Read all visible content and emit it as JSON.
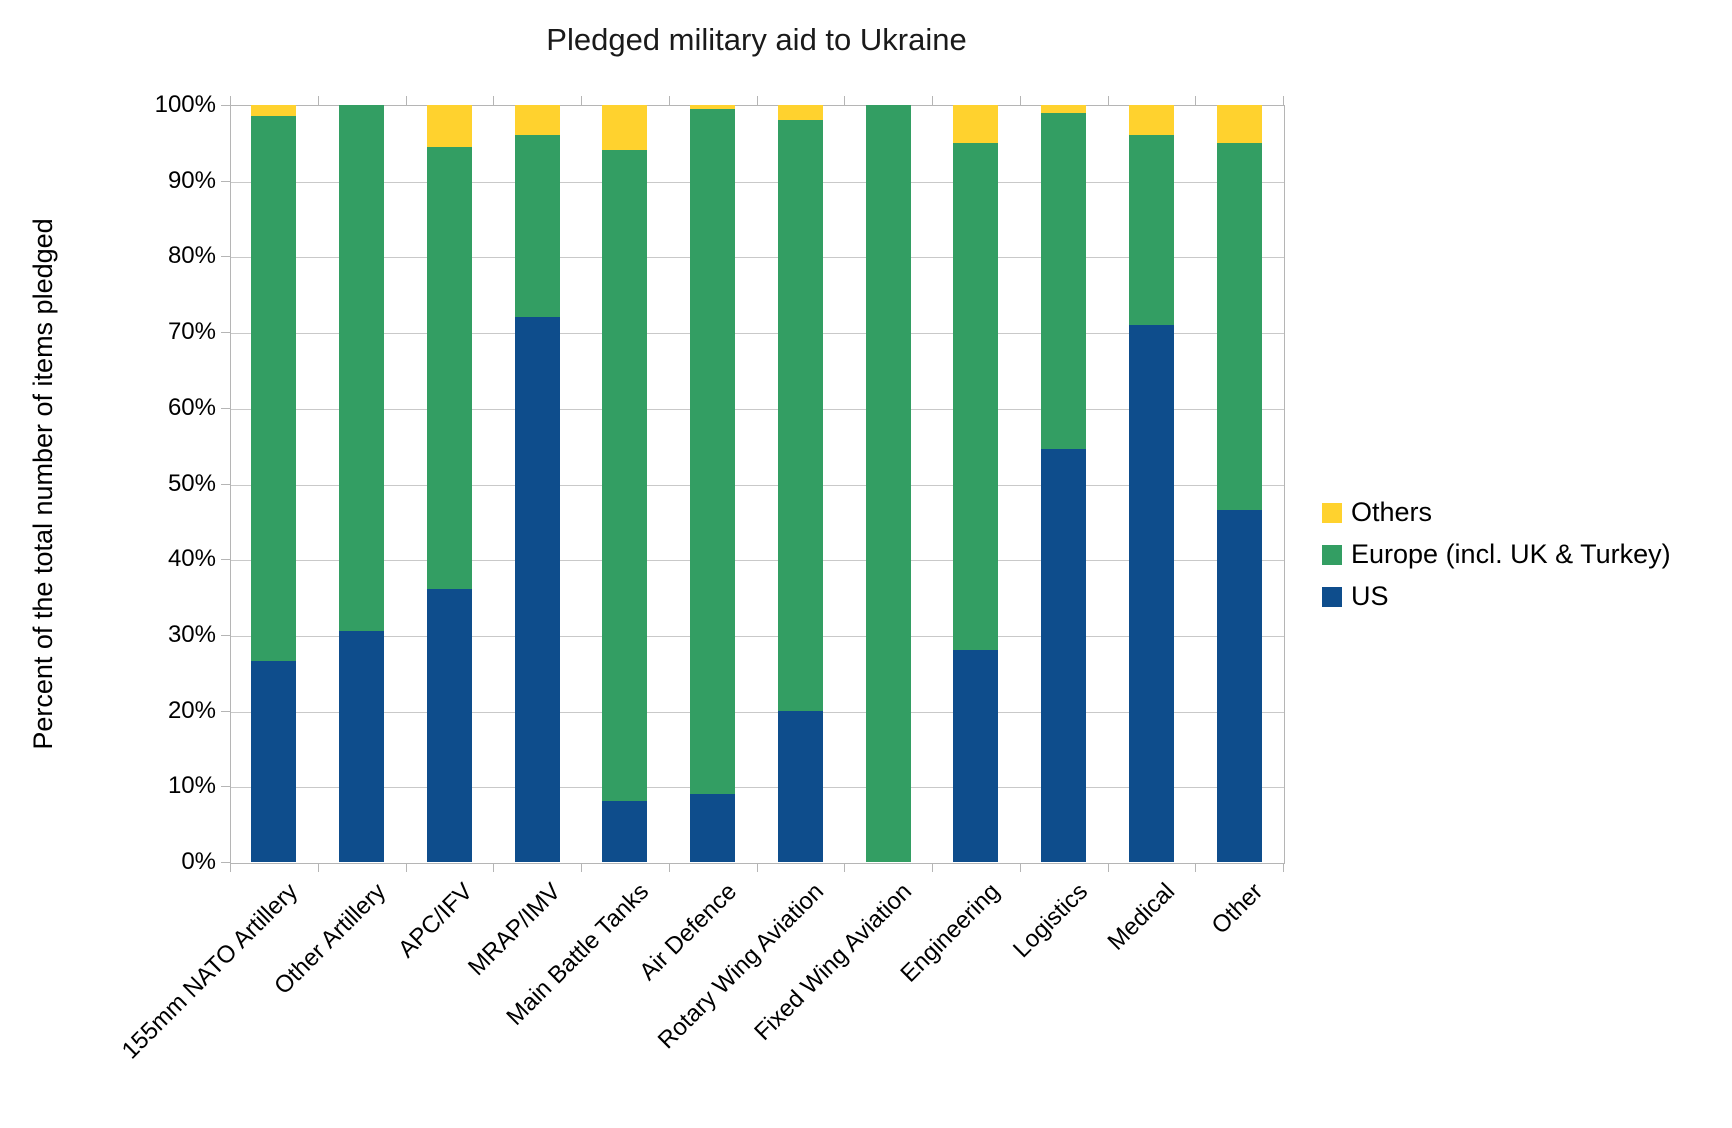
{
  "title": "Pledged military aid to Ukraine",
  "y_axis_title": "Percent of the total number of items pledged",
  "chart_data": {
    "type": "bar",
    "stacked": true,
    "title": "Pledged military aid to Ukraine",
    "xlabel": "",
    "ylabel": "Percent of the total number of items pledged",
    "ylim": [
      0,
      100
    ],
    "ytick_step": 10,
    "ytick_suffix": "%",
    "grid": true,
    "legend_position": "right",
    "categories": [
      "155mm NATO Artillery",
      "Other Artillery",
      "APC/IFV",
      "MRAP/IMV",
      "Main Battle Tanks",
      "Air Defence",
      "Rotary Wing Aviation",
      "Fixed Wing Aviation",
      "Engineering",
      "Logistics",
      "Medical",
      "Other"
    ],
    "series": [
      {
        "name": "US",
        "color": "#0E4D8C",
        "values": [
          26.5,
          30.5,
          36.0,
          72.0,
          8.0,
          9.0,
          20.0,
          0.0,
          28.0,
          54.5,
          71.0,
          46.5
        ]
      },
      {
        "name": "Europe (incl. UK & Turkey)",
        "color": "#339E63",
        "values": [
          72.0,
          69.5,
          58.5,
          24.0,
          86.0,
          90.5,
          78.0,
          100.0,
          67.0,
          44.5,
          25.0,
          48.5
        ]
      },
      {
        "name": "Others",
        "color": "#FFD22E",
        "values": [
          1.5,
          0.0,
          5.5,
          4.0,
          6.0,
          0.5,
          2.0,
          0.0,
          5.0,
          1.0,
          4.0,
          5.0
        ]
      }
    ],
    "legend_order_top_to_bottom": [
      "Others",
      "Europe (incl. UK & Turkey)",
      "US"
    ]
  },
  "colors": {
    "us": "#0E4D8C",
    "europe": "#339E63",
    "others": "#FFD22E",
    "gridline": "#c9c9c9",
    "axis": "#b5b5b5",
    "text": "#000000"
  }
}
